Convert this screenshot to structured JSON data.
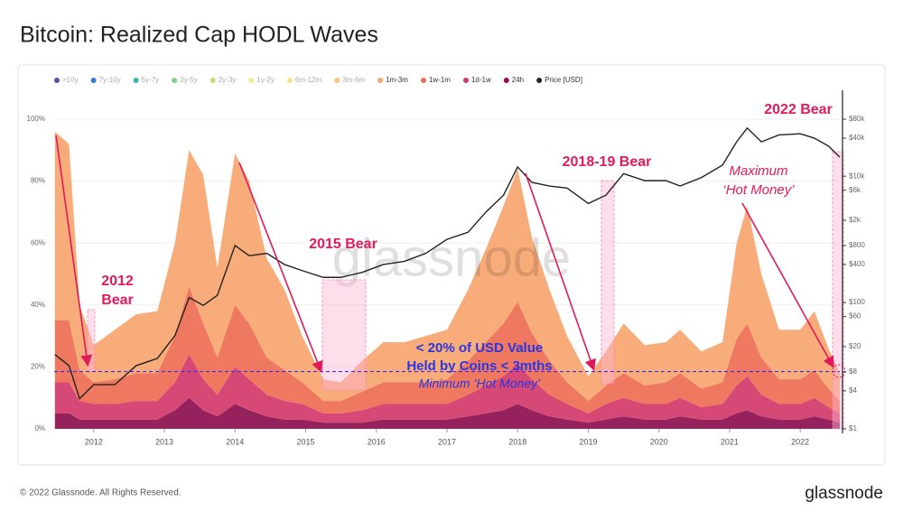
{
  "chart_data": {
    "type": "stacked_area",
    "title": "Bitcoin: Realized Cap HODL Waves",
    "x": [
      2011.45,
      2011.65,
      2011.8,
      2012.0,
      2012.3,
      2012.6,
      2012.9,
      2013.15,
      2013.35,
      2013.55,
      2013.75,
      2014.0,
      2014.2,
      2014.45,
      2014.7,
      2014.95,
      2015.25,
      2015.5,
      2015.8,
      2016.1,
      2016.4,
      2016.7,
      2017.0,
      2017.3,
      2017.55,
      2017.8,
      2018.0,
      2018.2,
      2018.45,
      2018.7,
      2019.0,
      2019.25,
      2019.5,
      2019.8,
      2020.1,
      2020.3,
      2020.6,
      2020.9,
      2021.1,
      2021.25,
      2021.45,
      2021.7,
      2022.0,
      2022.2,
      2022.4,
      2022.56
    ],
    "series": [
      {
        "name": "1m-3m",
        "color": "#f7a56f",
        "values": [
          61,
          57,
          21,
          12,
          16,
          19,
          20,
          30,
          44,
          48,
          29,
          49,
          46,
          32,
          26,
          15,
          7,
          6,
          10,
          13,
          13,
          15,
          16,
          23,
          30,
          38,
          43,
          31,
          23,
          15,
          8,
          11,
          16,
          13,
          13,
          14,
          12,
          13,
          31,
          38,
          27,
          16,
          16,
          19,
          13,
          9
        ]
      },
      {
        "name": "1w-1m",
        "color": "#ee6d52",
        "values": [
          20,
          20,
          10,
          7,
          8,
          9,
          9,
          15,
          22,
          18,
          12,
          20,
          18,
          12,
          10,
          7,
          4,
          4,
          6,
          7,
          7,
          7,
          8,
          11,
          14,
          17,
          20,
          15,
          11,
          7,
          4,
          6,
          8,
          6,
          7,
          8,
          6,
          7,
          15,
          17,
          12,
          8,
          8,
          9,
          6,
          4
        ]
      },
      {
        "name": "1d-1w",
        "color": "#d3386a",
        "values": [
          10,
          10,
          6,
          5,
          5,
          6,
          6,
          9,
          14,
          10,
          7,
          12,
          10,
          7,
          6,
          5,
          3,
          3,
          4,
          5,
          5,
          5,
          5,
          7,
          9,
          11,
          13,
          10,
          7,
          5,
          3,
          5,
          6,
          5,
          5,
          6,
          4,
          5,
          9,
          11,
          7,
          5,
          5,
          6,
          4,
          3
        ]
      },
      {
        "name": "24h",
        "color": "#8c0f4f",
        "values": [
          5,
          5,
          3,
          3,
          3,
          3,
          3,
          6,
          10,
          6,
          4,
          8,
          6,
          4,
          3,
          3,
          2,
          2,
          2,
          3,
          3,
          3,
          3,
          4,
          5,
          6,
          8,
          6,
          4,
          3,
          2,
          3,
          4,
          3,
          3,
          4,
          3,
          3,
          5,
          6,
          4,
          3,
          3,
          4,
          3,
          2
        ]
      },
      {
        "name": "Price [USD]",
        "color": "#222222",
        "axis": "y2",
        "values": [
          15,
          10,
          3,
          5,
          5,
          10,
          13,
          30,
          120,
          90,
          130,
          800,
          550,
          600,
          400,
          320,
          250,
          250,
          300,
          400,
          450,
          600,
          1000,
          1300,
          2700,
          5000,
          14000,
          8000,
          7000,
          6500,
          3700,
          5000,
          11000,
          8500,
          8500,
          7000,
          9500,
          15000,
          35000,
          58000,
          35000,
          45000,
          47000,
          40000,
          30000,
          20000
        ]
      }
    ],
    "inactive_series": [
      {
        "name": ">10y",
        "color": "#5b4fa8"
      },
      {
        "name": "7y-10y",
        "color": "#3a7cc4"
      },
      {
        "name": "5y-7y",
        "color": "#3bb3b0"
      },
      {
        "name": "3y-5y",
        "color": "#86cf8e"
      },
      {
        "name": "2y-3y",
        "color": "#b9df7b"
      },
      {
        "name": "1y-2y",
        "color": "#ecf08a"
      },
      {
        "name": "6m-12m",
        "color": "#f9e08a"
      },
      {
        "name": "3m-6m",
        "color": "#f8c87a"
      }
    ],
    "xlim": [
      2011.44,
      2022.56
    ],
    "xticks": [
      2012,
      2013,
      2014,
      2015,
      2016,
      2017,
      2018,
      2019,
      2020,
      2021,
      2022
    ],
    "ylim": [
      0,
      100
    ],
    "yticks": [
      {
        "value": 0,
        "label": "0%"
      },
      {
        "value": 20,
        "label": "20%"
      },
      {
        "value": 40,
        "label": "40%"
      },
      {
        "value": 60,
        "label": "60%"
      },
      {
        "value": 80,
        "label": "80%"
      },
      {
        "value": 100,
        "label": "100%"
      }
    ],
    "y2lim": [
      1,
      80000
    ],
    "y2_log": true,
    "y2ticks": [
      {
        "value": 1,
        "label": "$1"
      },
      {
        "value": 4,
        "label": "$4"
      },
      {
        "value": 8,
        "label": "$8"
      },
      {
        "value": 20,
        "label": "$20"
      },
      {
        "value": 60,
        "label": "$60"
      },
      {
        "value": 100,
        "label": "$100"
      },
      {
        "value": 400,
        "label": "$400"
      },
      {
        "value": 800,
        "label": "$800"
      },
      {
        "value": 2000,
        "label": "$2k"
      },
      {
        "value": 6000,
        "label": "$6k"
      },
      {
        "value": 10000,
        "label": "$10k"
      },
      {
        "value": 40000,
        "label": "$40k"
      },
      {
        "value": 80000,
        "label": "$80k"
      }
    ],
    "grid": true,
    "reference_line": 18.5,
    "annotations": [
      "2012",
      "Bear",
      "2015 Bear",
      "2018-19 Bear",
      "2022 Bear",
      "Maximum",
      "‘Hot Money’",
      "< 20% of USD Value",
      "Held by Coins < 3mths",
      "Minimum ‘Hot Money’"
    ],
    "watermark": "glassnode",
    "footer": "© 2022 Glassnode. All Rights Reserved.",
    "logo": "glassnode"
  }
}
